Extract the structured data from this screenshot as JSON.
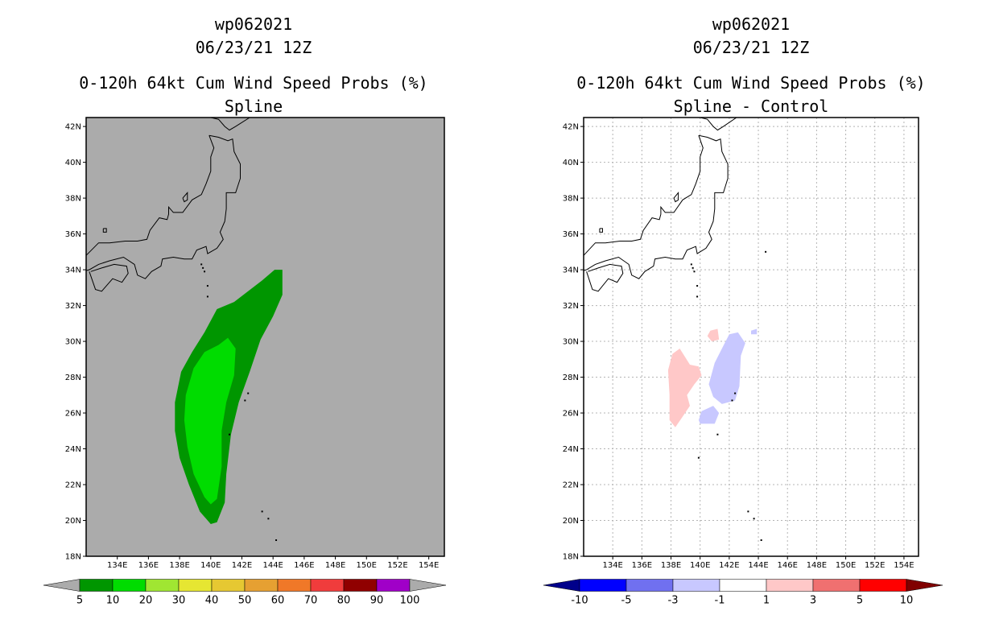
{
  "panels": [
    {
      "title_lines": [
        "wp062021",
        "06/23/21 12Z",
        "0-120h 64kt Cum Wind Speed Probs (%)",
        "Spline"
      ],
      "colorbar": {
        "labels": [
          "5",
          "10",
          "20",
          "30",
          "40",
          "50",
          "60",
          "70",
          "80",
          "90",
          "100"
        ],
        "colors": [
          "#ababab",
          "#009600",
          "#00dc00",
          "#a0e632",
          "#e6e632",
          "#e6c832",
          "#e6a032",
          "#f07828",
          "#f03c3c",
          "#900000",
          "#a000c8",
          "#ababab"
        ]
      }
    },
    {
      "title_lines": [
        "wp062021",
        "06/23/21 12Z",
        "0-120h 64kt Cum Wind Speed Probs (%)",
        "Spline - Control"
      ],
      "colorbar": {
        "labels": [
          "-10",
          "-5",
          "-3",
          "-1",
          "1",
          "3",
          "5",
          "10"
        ],
        "colors": [
          "#00008b",
          "#0000ff",
          "#7070f0",
          "#c8c8ff",
          "#ffffff",
          "#ffc8c8",
          "#f07070",
          "#ff0000",
          "#800000"
        ]
      }
    }
  ],
  "chart_data": [
    {
      "type": "heatmap",
      "title": "0-120h 64kt Cum Wind Speed Probs (%) - Spline",
      "xlim": [
        132,
        155
      ],
      "ylim": [
        18,
        42.5
      ],
      "xticks": [
        134,
        136,
        138,
        140,
        142,
        144,
        146,
        148,
        150,
        152,
        154
      ],
      "yticks": [
        18,
        20,
        22,
        24,
        26,
        28,
        30,
        32,
        34,
        36,
        38,
        40,
        42
      ],
      "xtick_labels": [
        "134E",
        "136E",
        "138E",
        "140E",
        "142E",
        "144E",
        "146E",
        "148E",
        "150E",
        "152E",
        "154E"
      ],
      "ytick_labels": [
        "18N",
        "20N",
        "22N",
        "24N",
        "26N",
        "28N",
        "30N",
        "32N",
        "34N",
        "36N",
        "38N",
        "40N",
        "42N"
      ],
      "background_color": "#ababab",
      "grid": false,
      "regions": [
        {
          "name": "prob-5-10",
          "fill": "#009600",
          "lonlat": [
            [
              144.1,
              34.0
            ],
            [
              144.6,
              34.0
            ],
            [
              144.6,
              32.6
            ],
            [
              144.0,
              31.4
            ],
            [
              143.2,
              30.1
            ],
            [
              142.5,
              28.3
            ],
            [
              141.8,
              26.6
            ],
            [
              141.3,
              24.8
            ],
            [
              141.0,
              22.6
            ],
            [
              140.9,
              21.0
            ],
            [
              140.4,
              19.9
            ],
            [
              140.0,
              19.8
            ],
            [
              139.3,
              20.5
            ],
            [
              138.6,
              22.0
            ],
            [
              138.0,
              23.5
            ],
            [
              137.7,
              25.0
            ],
            [
              137.7,
              26.6
            ],
            [
              138.1,
              28.3
            ],
            [
              138.8,
              29.4
            ],
            [
              139.6,
              30.5
            ],
            [
              140.4,
              31.8
            ],
            [
              141.5,
              32.2
            ],
            [
              142.4,
              32.8
            ],
            [
              143.3,
              33.4
            ]
          ]
        },
        {
          "name": "prob-10-20",
          "fill": "#00dc00",
          "lonlat": [
            [
              141.1,
              30.2
            ],
            [
              141.6,
              29.6
            ],
            [
              141.5,
              28.1
            ],
            [
              141.0,
              26.6
            ],
            [
              140.7,
              25.0
            ],
            [
              140.7,
              23.0
            ],
            [
              140.4,
              21.2
            ],
            [
              140.0,
              20.9
            ],
            [
              139.6,
              21.3
            ],
            [
              138.9,
              22.6
            ],
            [
              138.5,
              24.1
            ],
            [
              138.3,
              25.6
            ],
            [
              138.4,
              27.0
            ],
            [
              138.9,
              28.5
            ],
            [
              139.6,
              29.4
            ],
            [
              140.5,
              29.8
            ]
          ]
        }
      ],
      "markers": [
        [
          142.4,
          27.1
        ],
        [
          142.2,
          26.7
        ],
        [
          141.2,
          24.8
        ],
        [
          143.3,
          20.5
        ],
        [
          143.7,
          20.1
        ],
        [
          144.2,
          18.9
        ]
      ]
    },
    {
      "type": "heatmap",
      "title": "0-120h 64kt Cum Wind Speed Probs (%) - Spline - Control",
      "xlim": [
        132,
        155
      ],
      "ylim": [
        18,
        42.5
      ],
      "xticks": [
        134,
        136,
        138,
        140,
        142,
        144,
        146,
        148,
        150,
        152,
        154
      ],
      "yticks": [
        18,
        20,
        22,
        24,
        26,
        28,
        30,
        32,
        34,
        36,
        38,
        40,
        42
      ],
      "xtick_labels": [
        "134E",
        "136E",
        "138E",
        "140E",
        "142E",
        "144E",
        "146E",
        "148E",
        "150E",
        "152E",
        "154E"
      ],
      "ytick_labels": [
        "18N",
        "20N",
        "22N",
        "24N",
        "26N",
        "28N",
        "30N",
        "32N",
        "34N",
        "36N",
        "38N",
        "40N",
        "42N"
      ],
      "background_color": "#ffffff",
      "grid": true,
      "regions": [
        {
          "name": "diff-pos-1-3-west",
          "fill": "#ffc8c8",
          "lonlat": [
            [
              138.6,
              29.6
            ],
            [
              139.3,
              28.7
            ],
            [
              139.9,
              28.6
            ],
            [
              140.1,
              28.1
            ],
            [
              139.6,
              27.6
            ],
            [
              139.1,
              27.0
            ],
            [
              139.3,
              26.4
            ],
            [
              138.8,
              25.8
            ],
            [
              138.3,
              25.2
            ],
            [
              137.9,
              25.6
            ],
            [
              137.9,
              27.0
            ],
            [
              137.8,
              28.4
            ],
            [
              138.1,
              29.3
            ]
          ]
        },
        {
          "name": "diff-pos-1-3-small",
          "fill": "#ffc8c8",
          "lonlat": [
            [
              140.7,
              30.6
            ],
            [
              141.2,
              30.7
            ],
            [
              141.3,
              30.1
            ],
            [
              140.8,
              30.0
            ],
            [
              140.5,
              30.3
            ]
          ]
        },
        {
          "name": "diff-neg-1-3-east",
          "fill": "#c8c8ff",
          "lonlat": [
            [
              142.0,
              30.4
            ],
            [
              142.6,
              30.5
            ],
            [
              143.1,
              29.9
            ],
            [
              142.8,
              29.2
            ],
            [
              142.7,
              27.5
            ],
            [
              142.4,
              26.7
            ],
            [
              141.5,
              26.5
            ],
            [
              140.9,
              26.9
            ],
            [
              140.6,
              27.6
            ],
            [
              141.0,
              28.8
            ],
            [
              141.5,
              29.6
            ]
          ]
        },
        {
          "name": "diff-neg-1-3-south",
          "fill": "#c8c8ff",
          "lonlat": [
            [
              140.0,
              25.4
            ],
            [
              141.0,
              25.4
            ],
            [
              141.3,
              26.0
            ],
            [
              140.9,
              26.4
            ],
            [
              140.1,
              26.1
            ],
            [
              139.9,
              25.6
            ]
          ]
        },
        {
          "name": "diff-neg-1-3-tiny",
          "fill": "#c8c8ff",
          "lonlat": [
            [
              143.5,
              30.6
            ],
            [
              143.9,
              30.7
            ],
            [
              143.9,
              30.4
            ],
            [
              143.5,
              30.4
            ]
          ]
        }
      ],
      "markers": [
        [
          142.4,
          27.1
        ],
        [
          142.2,
          26.7
        ],
        [
          141.2,
          24.8
        ],
        [
          143.3,
          20.5
        ],
        [
          143.7,
          20.1
        ],
        [
          144.2,
          18.9
        ],
        [
          139.9,
          23.5
        ],
        [
          144.5,
          35.0
        ]
      ]
    }
  ]
}
